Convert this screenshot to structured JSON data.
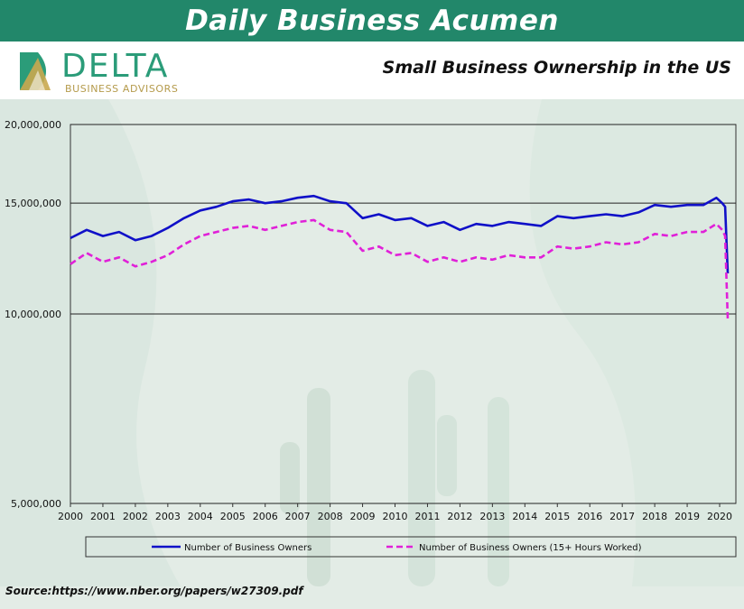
{
  "banner": {
    "title": "Daily Business Acumen"
  },
  "logo": {
    "word": "DELTA",
    "subtitle": "BUSINESS ADVISORS",
    "accent": "#2b9c79",
    "gold": "#b59b4c"
  },
  "chart_title": "Small Business Ownership in the US",
  "source": "Source:https://www.nber.org/papers/w27309.pdf",
  "chart_data": {
    "type": "line",
    "title": "Small Business Ownership in the US",
    "xlabel": "",
    "ylabel": "",
    "x_ticks": [
      "2000",
      "2001",
      "2002",
      "2003",
      "2004",
      "2005",
      "2006",
      "2007",
      "2008",
      "2009",
      "2010",
      "2011",
      "2012",
      "2013",
      "2014",
      "2015",
      "2016",
      "2017",
      "2018",
      "2019",
      "2020"
    ],
    "y_ticks": [
      "5,000,000",
      "10,000,000",
      "15,000,000",
      "20,000,000"
    ],
    "xlim": [
      2000,
      2020.5
    ],
    "ylim": [
      5000000,
      20000000
    ],
    "log_scale_y": true,
    "grid": "horizontal",
    "legend_position": "bottom",
    "x": [
      2000.0,
      2000.5,
      2001.0,
      2001.5,
      2002.0,
      2002.5,
      2003.0,
      2003.5,
      2004.0,
      2004.5,
      2005.0,
      2005.5,
      2006.0,
      2006.5,
      2007.0,
      2007.5,
      2008.0,
      2008.5,
      2009.0,
      2009.5,
      2010.0,
      2010.5,
      2011.0,
      2011.5,
      2012.0,
      2012.5,
      2013.0,
      2013.5,
      2014.0,
      2014.5,
      2015.0,
      2015.5,
      2016.0,
      2016.5,
      2017.0,
      2017.5,
      2018.0,
      2018.5,
      2019.0,
      2019.5,
      2019.9,
      2020.08,
      2020.17,
      2020.25
    ],
    "series": [
      {
        "name": "Number of Business Owners",
        "color": "#1010c8",
        "dash": "solid",
        "values": [
          13200000,
          13600000,
          13300000,
          13500000,
          13100000,
          13300000,
          13700000,
          14200000,
          14600000,
          14800000,
          15100000,
          15200000,
          15000000,
          15100000,
          15300000,
          15400000,
          15100000,
          15000000,
          14200000,
          14400000,
          14100000,
          14200000,
          13800000,
          14000000,
          13600000,
          13900000,
          13800000,
          14000000,
          13900000,
          13800000,
          14300000,
          14200000,
          14300000,
          14400000,
          14300000,
          14500000,
          14900000,
          14800000,
          14900000,
          14900000,
          15300000,
          15000000,
          14800000,
          11600000
        ]
      },
      {
        "name": "Number of Business Owners (15+ Hours Worked)",
        "color": "#e020d8",
        "dash": "dashed",
        "values": [
          12000000,
          12500000,
          12100000,
          12300000,
          11900000,
          12100000,
          12400000,
          12900000,
          13300000,
          13500000,
          13700000,
          13800000,
          13600000,
          13800000,
          14000000,
          14100000,
          13600000,
          13500000,
          12600000,
          12800000,
          12400000,
          12500000,
          12100000,
          12300000,
          12100000,
          12300000,
          12200000,
          12400000,
          12300000,
          12300000,
          12800000,
          12700000,
          12800000,
          13000000,
          12900000,
          13000000,
          13400000,
          13300000,
          13500000,
          13500000,
          13900000,
          13600000,
          13300000,
          9800000
        ]
      }
    ]
  }
}
